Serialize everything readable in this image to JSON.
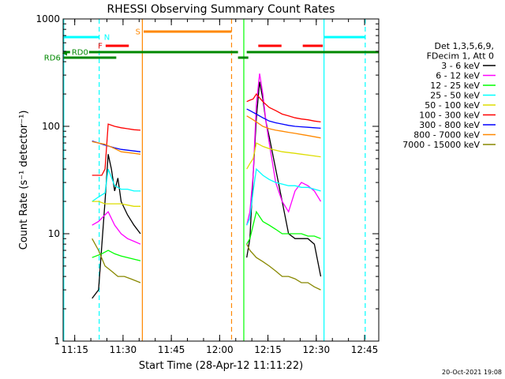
{
  "chart_data": {
    "type": "line",
    "title": "RHESSI Observing Summary Count Rates",
    "xlabel": "Start Time (28-Apr-12 11:11:22)",
    "ylabel": "Count Rate (s⁻¹ detector⁻¹)",
    "x_unit": "minutes after 11:11:22 UT",
    "xlim": [
      0,
      98
    ],
    "ylim": [
      1,
      1000
    ],
    "yscale": "log",
    "grid": false,
    "x_ticks": [
      {
        "t": 3.6,
        "label": "11:15"
      },
      {
        "t": 18.6,
        "label": "11:30"
      },
      {
        "t": 33.6,
        "label": "11:45"
      },
      {
        "t": 48.6,
        "label": "12:00"
      },
      {
        "t": 63.6,
        "label": "12:15"
      },
      {
        "t": 78.6,
        "label": "12:30"
      },
      {
        "t": 93.6,
        "label": "12:45"
      }
    ],
    "y_ticks": [
      {
        "v": 1,
        "label": "1"
      },
      {
        "v": 10,
        "label": "10"
      },
      {
        "v": 100,
        "label": "100"
      },
      {
        "v": 1000,
        "label": "1000"
      }
    ],
    "legend": {
      "placement": "right",
      "header": [
        "Det 1,3,5,6,9,",
        "FDecim 1, Att 0"
      ]
    },
    "series": [
      {
        "name": "3 - 6 keV",
        "color": "#000000",
        "segments": [
          {
            "x": [
              9,
              11,
              13,
              14,
              15,
              16,
              17,
              18,
              20,
              22,
              24
            ],
            "y": [
              2.5,
              3,
              20,
              55,
              40,
              25,
              33,
              20,
              15,
              12,
              10
            ]
          },
          {
            "x": [
              57,
              58,
              59,
              60,
              61,
              62,
              63,
              64,
              66,
              68,
              70,
              72,
              74,
              76,
              78,
              80
            ],
            "y": [
              6,
              9,
              35,
              120,
              260,
              180,
              110,
              80,
              40,
              20,
              10,
              9,
              9,
              9,
              8,
              4
            ]
          }
        ]
      },
      {
        "name": "6 - 12 keV",
        "color": "#ff00ff",
        "segments": [
          {
            "x": [
              9,
              11,
              13,
              14,
              16,
              18,
              20,
              22,
              24
            ],
            "y": [
              12,
              13,
              15,
              16,
              12,
              10,
              9,
              8.5,
              8
            ]
          },
          {
            "x": [
              57,
              58,
              59,
              60,
              61,
              62,
              63,
              64,
              66,
              68,
              70,
              72,
              74,
              76,
              78,
              80
            ],
            "y": [
              12,
              16,
              35,
              160,
              310,
              200,
              110,
              70,
              30,
              20,
              16,
              25,
              30,
              28,
              25,
              20
            ]
          }
        ]
      },
      {
        "name": "12 - 25 keV",
        "color": "#00ff00",
        "segments": [
          {
            "x": [
              9,
              12,
              14,
              16,
              18,
              20,
              22,
              24
            ],
            "y": [
              6,
              6.5,
              7,
              6.5,
              6.2,
              6,
              5.8,
              5.6
            ]
          },
          {
            "x": [
              57,
              58,
              59,
              60,
              62,
              64,
              66,
              68,
              70,
              72,
              74,
              76,
              78,
              80
            ],
            "y": [
              8,
              9,
              12,
              16,
              13,
              12,
              11,
              10,
              10,
              10,
              10,
              9.5,
              9.5,
              9
            ]
          }
        ]
      },
      {
        "name": "25 - 50 keV",
        "color": "#00ffff",
        "segments": [
          {
            "x": [
              9,
              11,
              13,
              14,
              16,
              18,
              20,
              22,
              24
            ],
            "y": [
              20,
              22,
              24,
              40,
              28,
              26,
              26,
              25,
              25
            ]
          },
          {
            "x": [
              57,
              58,
              59,
              60,
              62,
              64,
              66,
              68,
              70,
              72,
              74,
              76,
              78,
              80
            ],
            "y": [
              12,
              14,
              25,
              40,
              35,
              32,
              30,
              29,
              28,
              28,
              27,
              27,
              26,
              25
            ]
          }
        ]
      },
      {
        "name": "50 - 100 keV",
        "color": "#dddd00",
        "segments": [
          {
            "x": [
              9,
              11,
              13,
              16,
              18,
              20,
              22,
              24
            ],
            "y": [
              20,
              20,
              19,
              19,
              19,
              18.5,
              18,
              18
            ]
          },
          {
            "x": [
              57,
              58,
              59,
              60,
              62,
              64,
              66,
              68,
              70,
              72,
              74,
              76,
              78,
              80
            ],
            "y": [
              40,
              45,
              50,
              70,
              65,
              62,
              60,
              58,
              57,
              56,
              55,
              54,
              53,
              52
            ]
          }
        ]
      },
      {
        "name": "100 - 300 keV",
        "color": "#ff0000",
        "segments": [
          {
            "x": [
              9,
              11,
              12,
              13,
              14,
              16,
              18,
              20,
              22,
              24
            ],
            "y": [
              35,
              35,
              35,
              40,
              105,
              100,
              97,
              95,
              93,
              92
            ]
          },
          {
            "x": [
              57,
              58,
              59,
              60,
              62,
              64,
              66,
              68,
              70,
              72,
              74,
              76,
              78,
              80
            ],
            "y": [
              170,
              175,
              180,
              200,
              170,
              150,
              140,
              130,
              125,
              120,
              117,
              115,
              112,
              110
            ]
          }
        ]
      },
      {
        "name": "300 - 800 keV",
        "color": "#0000ff",
        "segments": [
          {
            "x": [
              9,
              11,
              13,
              16,
              18,
              20,
              22,
              24
            ],
            "y": [
              73,
              70,
              67,
              63,
              61,
              60,
              59,
              58
            ]
          },
          {
            "x": [
              57,
              58,
              59,
              60,
              62,
              64,
              66,
              68,
              70,
              72,
              74,
              76,
              78,
              80
            ],
            "y": [
              145,
              140,
              135,
              130,
              120,
              112,
              108,
              105,
              102,
              100,
              99,
              98,
              97,
              96
            ]
          }
        ]
      },
      {
        "name": "800 - 7000 keV",
        "color": "#ff8800",
        "segments": [
          {
            "x": [
              9,
              11,
              13,
              16,
              18,
              20,
              22,
              24
            ],
            "y": [
              72,
              70,
              68,
              62,
              58,
              57,
              56,
              55
            ]
          },
          {
            "x": [
              57,
              58,
              59,
              60,
              62,
              64,
              66,
              68,
              70,
              72,
              74,
              76,
              78,
              80
            ],
            "y": [
              125,
              120,
              115,
              110,
              100,
              95,
              92,
              90,
              88,
              86,
              84,
              82,
              80,
              78
            ]
          }
        ]
      },
      {
        "name": "7000 - 15000 keV",
        "color": "#888800",
        "segments": [
          {
            "x": [
              9,
              11,
              13,
              15,
              17,
              19,
              21,
              24
            ],
            "y": [
              9,
              7,
              5,
              4.5,
              4,
              4,
              3.8,
              3.5
            ]
          },
          {
            "x": [
              57,
              58,
              60,
              62,
              64,
              66,
              68,
              70,
              72,
              74,
              76,
              78,
              80
            ],
            "y": [
              8,
              7,
              6,
              5.5,
              5,
              4.5,
              4,
              4,
              3.8,
              3.5,
              3.5,
              3.2,
              3
            ]
          }
        ]
      }
    ],
    "annotations": {
      "vlines": [
        {
          "t": 0.2,
          "color": "#00ffff",
          "style": "solid"
        },
        {
          "t": 11.2,
          "color": "#00ffff",
          "style": "dashed"
        },
        {
          "t": 24.6,
          "color": "#ff8800",
          "style": "solid"
        },
        {
          "t": 52.3,
          "color": "#ff8800",
          "style": "dashed"
        },
        {
          "t": 56.1,
          "color": "#00ff00",
          "style": "solid"
        },
        {
          "t": 81.0,
          "color": "#00ffff",
          "style": "solid"
        },
        {
          "t": 93.8,
          "color": "#00ffff",
          "style": "dashed"
        }
      ],
      "bars": [
        {
          "label": "N",
          "color": "#00ffff",
          "t1": 0.2,
          "t2": 11.2,
          "y": 47,
          "label_side": "right"
        },
        {
          "label": "",
          "color": "#00ffff",
          "t1": 81.0,
          "t2": 93.8,
          "y": 47
        },
        {
          "label": "S",
          "color": "#ff8800",
          "t1": 25.0,
          "t2": 52.3,
          "y": 40,
          "label_side": "left"
        },
        {
          "label": "F",
          "color": "#ff0000",
          "t1": 13.2,
          "t2": 20.4,
          "y": 58,
          "label_side": "left"
        },
        {
          "label": "",
          "color": "#ff0000",
          "t1": 60.6,
          "t2": 67.8,
          "y": 58
        },
        {
          "label": "",
          "color": "#ff0000",
          "t1": 74.4,
          "t2": 80.6,
          "y": 58
        },
        {
          "label": "RD0",
          "color": "#008800",
          "t1": 0.2,
          "t2": 54.3,
          "y": 66,
          "label_side": "inside",
          "marker": "◀"
        },
        {
          "label": "",
          "color": "#008800",
          "t1": 57.0,
          "t2": 98.0,
          "y": 66
        },
        {
          "label": "RD6",
          "color": "#008800",
          "t1": 0.2,
          "t2": 16.5,
          "y": 73,
          "label_side": "left"
        },
        {
          "label": "",
          "color": "#008800",
          "t1": 54.3,
          "t2": 57.5,
          "y": 73
        }
      ]
    }
  },
  "footer": {
    "timestamp": "20-Oct-2021 19:08"
  }
}
